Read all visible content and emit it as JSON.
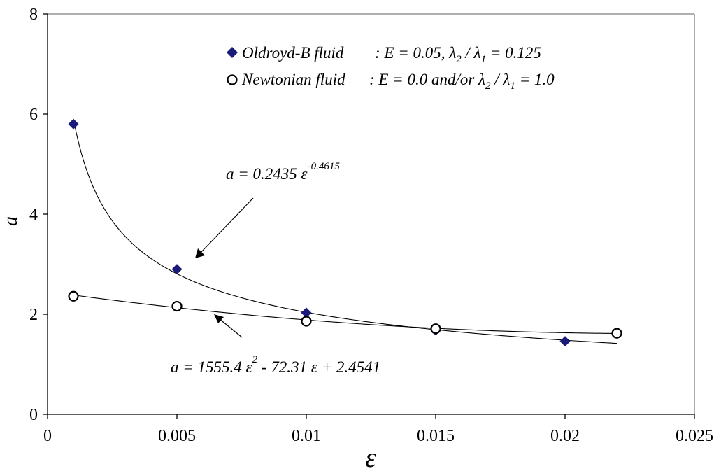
{
  "chart_data": {
    "type": "scatter",
    "xlabel": "ε",
    "ylabel": "a",
    "xlim": [
      0,
      0.025
    ],
    "ylim": [
      0,
      8
    ],
    "x_ticks": [
      "0",
      "0.005",
      "0.01",
      "0.015",
      "0.02",
      "0.025"
    ],
    "y_ticks": [
      "0",
      "2",
      "4",
      "6",
      "8"
    ],
    "grid": false,
    "legend_position": "top-right",
    "series": [
      {
        "name": "Oldroyd-B fluid",
        "name_suffix": ": E = 0.05, λ₂/λ₁ = 0.125",
        "marker": "diamond",
        "color": "#1a1a7a",
        "x": [
          0.001,
          0.005,
          0.01,
          0.015,
          0.02
        ],
        "y": [
          5.8,
          2.9,
          2.03,
          1.68,
          1.46
        ]
      },
      {
        "name": "Newtonian fluid",
        "name_suffix": ": E = 0.0 and/or λ₂/λ₁ = 1.0",
        "marker": "open-circle",
        "color": "#000000",
        "x": [
          0.001,
          0.005,
          0.01,
          0.015,
          0.022
        ],
        "y": [
          2.36,
          2.16,
          1.86,
          1.71,
          1.62
        ]
      }
    ],
    "fits": [
      {
        "series": 0,
        "type": "power",
        "coef": 0.2435,
        "exp": -0.4615,
        "x_range": [
          0.001,
          0.022
        ]
      },
      {
        "series": 1,
        "type": "poly2",
        "c2": 1555.4,
        "c1": -72.31,
        "c0": 2.4541,
        "x_range": [
          0.001,
          0.022
        ]
      }
    ],
    "annotations": [
      {
        "text": "a = 0.2435 ε^-0.4615",
        "target_x": 0.0057,
        "target_y": 3.3
      },
      {
        "text": "a = 1555.4 ε² - 72.31 ε + 2.4541",
        "target_x": 0.0065,
        "target_y": 2.1
      }
    ]
  }
}
